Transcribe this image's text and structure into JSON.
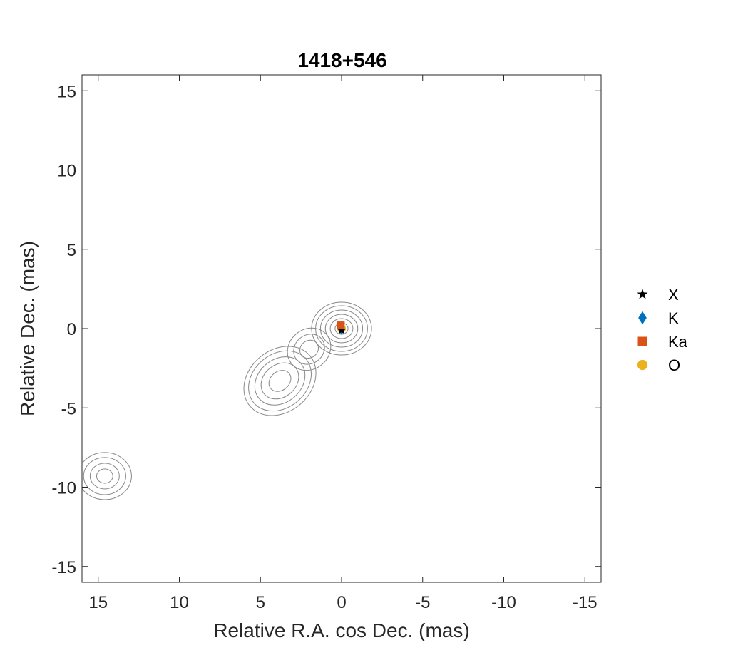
{
  "chart_data": {
    "type": "contour",
    "title": "1418+546",
    "xlabel": "Relative R.A. cos Dec. (mas)",
    "ylabel": "Relative Dec. (mas)",
    "xlim": [
      16,
      -16
    ],
    "ylim": [
      -16,
      16
    ],
    "x_reversed": true,
    "xticks": [
      15,
      10,
      5,
      0,
      -5,
      -10,
      -15
    ],
    "yticks": [
      -15,
      -10,
      -5,
      0,
      5,
      10,
      15
    ],
    "grid": false,
    "legend_position": "right",
    "contour_color": "#888888",
    "contour_components": [
      {
        "x": 0,
        "y": 0,
        "levels_halfwidth_mas": [
          0.4,
          0.7,
          1.0,
          1.3,
          1.6,
          1.85
        ]
      },
      {
        "x": 2.0,
        "y": -1.3,
        "levels_halfwidth_mas": [
          0.6,
          1.0,
          1.4
        ]
      },
      {
        "x": 3.8,
        "y": -3.3,
        "levels_halfwidth_mas": [
          0.7,
          1.2,
          1.6,
          2.0,
          2.3
        ]
      },
      {
        "x": 14.6,
        "y": -9.3,
        "levels_halfwidth_mas": [
          0.5,
          0.9,
          1.3,
          1.65
        ]
      }
    ],
    "series": [
      {
        "name": "X",
        "marker": "star",
        "color": "#000000",
        "x": 0.0,
        "y": -0.1
      },
      {
        "name": "K",
        "marker": "diamond",
        "color": "#0072BD",
        "x": 0.0,
        "y": -0.05
      },
      {
        "name": "Ka",
        "marker": "square",
        "color": "#D95319",
        "x": 0.05,
        "y": 0.2
      },
      {
        "name": "O",
        "marker": "circle",
        "color": "#EDB120",
        "x": 0.0,
        "y": 0.0
      }
    ]
  }
}
